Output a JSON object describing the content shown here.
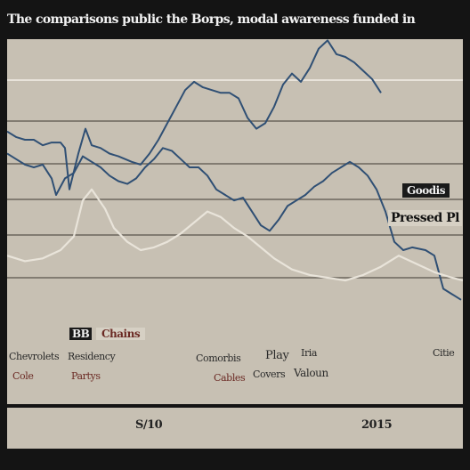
{
  "chart_data": {
    "type": "line",
    "title": "The comparisons public the Borps, modal awareness funded in",
    "x_ticks": [
      "S/10",
      "2015"
    ],
    "ylim": [
      0,
      100
    ],
    "grid": true,
    "series": [
      {
        "name": "",
        "color": "#2f4f74",
        "values": [
          [
            0,
            73
          ],
          [
            10,
            71
          ],
          [
            20,
            70
          ],
          [
            30,
            70
          ],
          [
            40,
            68
          ],
          [
            50,
            69
          ],
          [
            60,
            69
          ],
          [
            65,
            67
          ],
          [
            70,
            52
          ],
          [
            80,
            65
          ],
          [
            88,
            74
          ],
          [
            95,
            68
          ],
          [
            105,
            67
          ],
          [
            115,
            65
          ],
          [
            125,
            64
          ],
          [
            140,
            62
          ],
          [
            150,
            61
          ],
          [
            160,
            65
          ],
          [
            170,
            70
          ],
          [
            180,
            76
          ],
          [
            190,
            82
          ],
          [
            200,
            88
          ],
          [
            210,
            91
          ],
          [
            220,
            89
          ],
          [
            230,
            88
          ],
          [
            240,
            87
          ],
          [
            250,
            87
          ],
          [
            260,
            85
          ],
          [
            270,
            78
          ],
          [
            280,
            74
          ],
          [
            290,
            76
          ],
          [
            300,
            82
          ],
          [
            310,
            90
          ],
          [
            320,
            94
          ],
          [
            330,
            91
          ],
          [
            340,
            96
          ],
          [
            350,
            103
          ],
          [
            360,
            106
          ],
          [
            370,
            101
          ],
          [
            380,
            100
          ],
          [
            390,
            98
          ],
          [
            400,
            95
          ],
          [
            410,
            92
          ],
          [
            420,
            87
          ]
        ]
      },
      {
        "name": "",
        "color": "#2f4f74",
        "values": [
          [
            0,
            65
          ],
          [
            10,
            63
          ],
          [
            20,
            61
          ],
          [
            30,
            60
          ],
          [
            40,
            61
          ],
          [
            50,
            56
          ],
          [
            55,
            50
          ],
          [
            65,
            56
          ],
          [
            75,
            58
          ],
          [
            85,
            64
          ],
          [
            95,
            62
          ],
          [
            105,
            60
          ],
          [
            115,
            57
          ],
          [
            125,
            55
          ],
          [
            135,
            54
          ],
          [
            145,
            56
          ],
          [
            155,
            60
          ],
          [
            165,
            63
          ],
          [
            175,
            67
          ],
          [
            185,
            66
          ],
          [
            195,
            63
          ],
          [
            205,
            60
          ],
          [
            215,
            60
          ],
          [
            225,
            57
          ],
          [
            235,
            52
          ],
          [
            245,
            50
          ],
          [
            255,
            48
          ],
          [
            265,
            49
          ],
          [
            275,
            44
          ],
          [
            285,
            39
          ],
          [
            295,
            37
          ],
          [
            305,
            41
          ],
          [
            315,
            46
          ],
          [
            325,
            48
          ],
          [
            335,
            50
          ],
          [
            345,
            53
          ],
          [
            355,
            55
          ],
          [
            365,
            58
          ],
          [
            375,
            60
          ],
          [
            385,
            62
          ],
          [
            395,
            60
          ],
          [
            405,
            57
          ],
          [
            415,
            52
          ],
          [
            425,
            44
          ],
          [
            435,
            33
          ],
          [
            445,
            30
          ],
          [
            455,
            31
          ],
          [
            470,
            30
          ],
          [
            480,
            28
          ],
          [
            490,
            16
          ],
          [
            500,
            14
          ],
          [
            510,
            12
          ]
        ]
      },
      {
        "name": "",
        "color": "#e9e4da",
        "values": [
          [
            0,
            28
          ],
          [
            20,
            26
          ],
          [
            40,
            27
          ],
          [
            60,
            30
          ],
          [
            75,
            35
          ],
          [
            85,
            48
          ],
          [
            95,
            52
          ],
          [
            110,
            45
          ],
          [
            120,
            38
          ],
          [
            135,
            33
          ],
          [
            150,
            30
          ],
          [
            165,
            31
          ],
          [
            180,
            33
          ],
          [
            195,
            36
          ],
          [
            210,
            40
          ],
          [
            225,
            44
          ],
          [
            240,
            42
          ],
          [
            255,
            38
          ],
          [
            270,
            35
          ],
          [
            285,
            31
          ],
          [
            300,
            27
          ],
          [
            320,
            23
          ],
          [
            340,
            21
          ],
          [
            360,
            20
          ],
          [
            380,
            19
          ],
          [
            400,
            21
          ],
          [
            420,
            24
          ],
          [
            440,
            28
          ],
          [
            460,
            25
          ],
          [
            480,
            22
          ],
          [
            500,
            20
          ],
          [
            512,
            19
          ]
        ]
      }
    ],
    "legend": {
      "position": "top-right",
      "entries": [
        {
          "text": "Goodis",
          "box_bg": "#1a1a1a",
          "box_fg": "#f0f0f0"
        },
        {
          "text": "Pressed Pl",
          "box_bg": "#d6d0c4",
          "box_fg": "#111111"
        },
        {
          "text": "BB",
          "box_bg": "#1a1a1a",
          "box_fg": "#f0f0f0"
        },
        {
          "text": "Chains",
          "box_bg": "#d6d0c4",
          "box_fg": "#6b2a24"
        }
      ]
    },
    "annotations": [
      "Chevrolets",
      "Residency",
      "Comorbis",
      "Play",
      "Iria",
      "Citie",
      "Cole",
      "Partys",
      "Covers",
      "Valoun",
      "Cables"
    ]
  }
}
